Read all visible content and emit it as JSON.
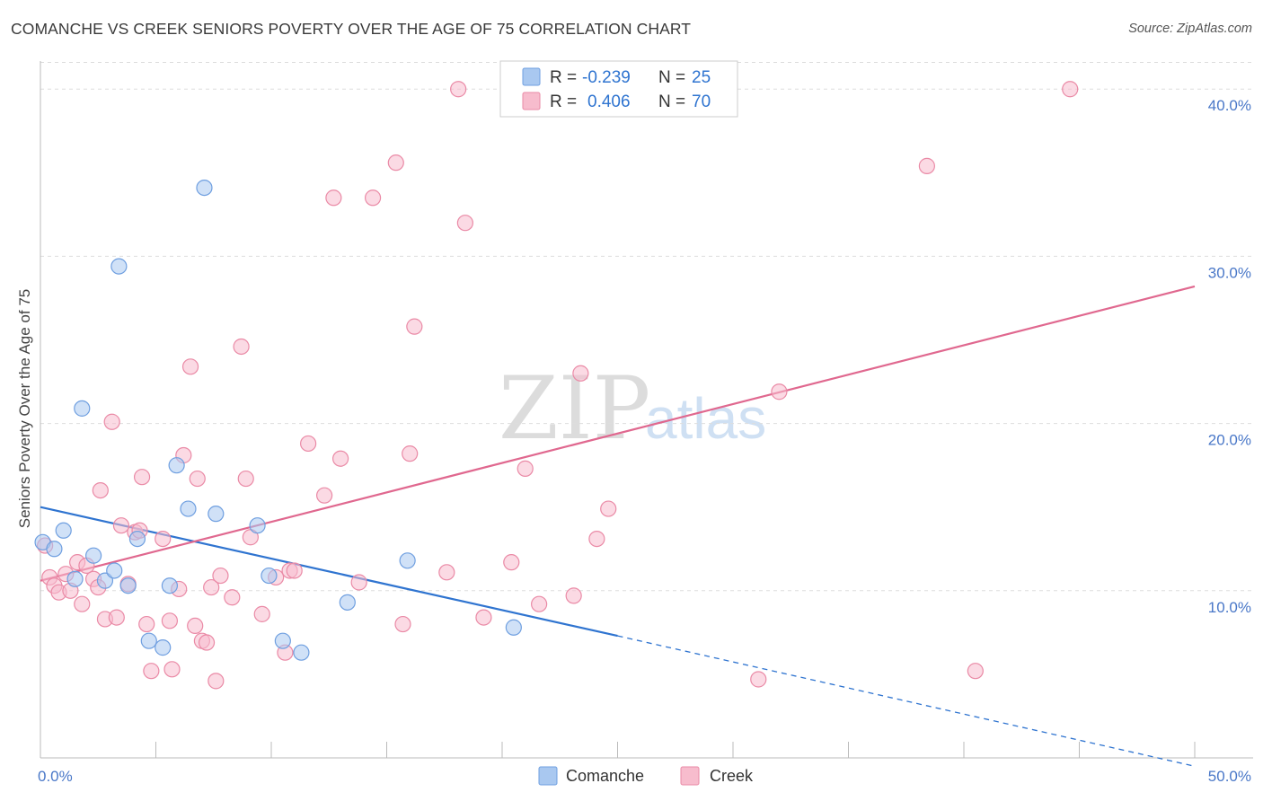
{
  "title": "COMANCHE VS CREEK SENIORS POVERTY OVER THE AGE OF 75 CORRELATION CHART",
  "source": "Source: ZipAtlas.com",
  "watermark": {
    "zip": "ZIP",
    "atlas": "atlas"
  },
  "legend": {
    "rows": [
      {
        "r_label": "R =",
        "r_value": "-0.239",
        "n_label": "N =",
        "n_value": "25",
        "color": "#a9c8f0",
        "stroke": "#6f9fe0"
      },
      {
        "r_label": "R =",
        "r_value": "0.406",
        "n_label": "N =",
        "n_value": "70",
        "color": "#f7bccd",
        "stroke": "#ea8aa6"
      }
    ]
  },
  "bottom_legend": [
    {
      "label": "Comanche",
      "color": "#a9c8f0",
      "stroke": "#6f9fe0"
    },
    {
      "label": "Creek",
      "color": "#f7bccd",
      "stroke": "#ea8aa6"
    }
  ],
  "colors": {
    "comanche_line": "#2f74d0",
    "creek_line": "#e0688f",
    "tick": "#4a78c8",
    "grid": "#dddddd"
  },
  "chart_data": {
    "type": "scatter",
    "title": "COMANCHE VS CREEK SENIORS POVERTY OVER THE AGE OF 75 CORRELATION CHART",
    "xlabel": "",
    "ylabel": "Seniors Poverty Over the Age of 75",
    "xlim": [
      0,
      50
    ],
    "ylim": [
      0,
      42
    ],
    "x_tick_labels": [
      "0.0%",
      "50.0%"
    ],
    "y_ticks": [
      10,
      20,
      30,
      40
    ],
    "y_tick_labels": [
      "10.0%",
      "20.0%",
      "30.0%",
      "40.0%"
    ],
    "grid": true,
    "legend_position": "top-center",
    "series": [
      {
        "name": "Comanche",
        "r": -0.239,
        "n": 25,
        "trend": {
          "x0": 0,
          "y0": 15.0,
          "x1": 25,
          "y1": 7.3,
          "dashed_to_x": 50,
          "dashed_to_y": -0.5
        },
        "points": [
          {
            "x": 0.1,
            "y": 12.9
          },
          {
            "x": 0.6,
            "y": 12.5
          },
          {
            "x": 1.0,
            "y": 13.6
          },
          {
            "x": 1.5,
            "y": 10.7
          },
          {
            "x": 1.8,
            "y": 20.9
          },
          {
            "x": 2.3,
            "y": 12.1
          },
          {
            "x": 2.8,
            "y": 10.6
          },
          {
            "x": 3.2,
            "y": 11.2
          },
          {
            "x": 3.4,
            "y": 29.4
          },
          {
            "x": 3.8,
            "y": 10.3
          },
          {
            "x": 4.2,
            "y": 13.1
          },
          {
            "x": 4.7,
            "y": 7.0
          },
          {
            "x": 5.3,
            "y": 6.6
          },
          {
            "x": 5.6,
            "y": 10.3
          },
          {
            "x": 5.9,
            "y": 17.5
          },
          {
            "x": 6.4,
            "y": 14.9
          },
          {
            "x": 7.1,
            "y": 34.1
          },
          {
            "x": 7.6,
            "y": 14.6
          },
          {
            "x": 9.4,
            "y": 13.9
          },
          {
            "x": 9.9,
            "y": 10.9
          },
          {
            "x": 10.5,
            "y": 7.0
          },
          {
            "x": 11.3,
            "y": 6.3
          },
          {
            "x": 13.3,
            "y": 9.3
          },
          {
            "x": 15.9,
            "y": 11.8
          },
          {
            "x": 20.5,
            "y": 7.8
          }
        ]
      },
      {
        "name": "Creek",
        "r": 0.406,
        "n": 70,
        "trend": {
          "x0": 0,
          "y0": 10.6,
          "x1": 50,
          "y1": 28.2
        },
        "points": [
          {
            "x": 0.2,
            "y": 12.7
          },
          {
            "x": 0.4,
            "y": 10.8
          },
          {
            "x": 0.6,
            "y": 10.3
          },
          {
            "x": 0.8,
            "y": 9.9
          },
          {
            "x": 1.1,
            "y": 11.0
          },
          {
            "x": 1.3,
            "y": 10.0
          },
          {
            "x": 1.6,
            "y": 11.7
          },
          {
            "x": 1.8,
            "y": 9.2
          },
          {
            "x": 2.0,
            "y": 11.5
          },
          {
            "x": 2.3,
            "y": 10.7
          },
          {
            "x": 2.5,
            "y": 10.2
          },
          {
            "x": 2.6,
            "y": 16.0
          },
          {
            "x": 2.8,
            "y": 8.3
          },
          {
            "x": 3.1,
            "y": 20.1
          },
          {
            "x": 3.3,
            "y": 8.4
          },
          {
            "x": 3.5,
            "y": 13.9
          },
          {
            "x": 3.8,
            "y": 10.4
          },
          {
            "x": 4.1,
            "y": 13.5
          },
          {
            "x": 4.3,
            "y": 13.6
          },
          {
            "x": 4.4,
            "y": 16.8
          },
          {
            "x": 4.6,
            "y": 8.0
          },
          {
            "x": 4.8,
            "y": 5.2
          },
          {
            "x": 5.3,
            "y": 13.1
          },
          {
            "x": 5.6,
            "y": 8.2
          },
          {
            "x": 5.7,
            "y": 5.3
          },
          {
            "x": 6.0,
            "y": 10.1
          },
          {
            "x": 6.2,
            "y": 18.1
          },
          {
            "x": 6.5,
            "y": 23.4
          },
          {
            "x": 6.7,
            "y": 7.9
          },
          {
            "x": 6.8,
            "y": 16.7
          },
          {
            "x": 7.0,
            "y": 7.0
          },
          {
            "x": 7.2,
            "y": 6.9
          },
          {
            "x": 7.4,
            "y": 10.2
          },
          {
            "x": 7.6,
            "y": 4.6
          },
          {
            "x": 7.8,
            "y": 10.9
          },
          {
            "x": 8.3,
            "y": 9.6
          },
          {
            "x": 8.7,
            "y": 24.6
          },
          {
            "x": 8.9,
            "y": 16.7
          },
          {
            "x": 9.1,
            "y": 13.2
          },
          {
            "x": 9.6,
            "y": 8.6
          },
          {
            "x": 10.2,
            "y": 10.8
          },
          {
            "x": 10.6,
            "y": 6.3
          },
          {
            "x": 10.8,
            "y": 11.2
          },
          {
            "x": 11.0,
            "y": 11.2
          },
          {
            "x": 11.6,
            "y": 18.8
          },
          {
            "x": 12.3,
            "y": 15.7
          },
          {
            "x": 12.7,
            "y": 33.5
          },
          {
            "x": 13.0,
            "y": 17.9
          },
          {
            "x": 13.8,
            "y": 10.5
          },
          {
            "x": 14.4,
            "y": 33.5
          },
          {
            "x": 15.4,
            "y": 35.6
          },
          {
            "x": 15.7,
            "y": 8.0
          },
          {
            "x": 16.0,
            "y": 18.2
          },
          {
            "x": 16.2,
            "y": 25.8
          },
          {
            "x": 17.6,
            "y": 11.1
          },
          {
            "x": 18.1,
            "y": 40.0
          },
          {
            "x": 18.4,
            "y": 32.0
          },
          {
            "x": 19.2,
            "y": 8.4
          },
          {
            "x": 20.4,
            "y": 11.7
          },
          {
            "x": 21.0,
            "y": 17.3
          },
          {
            "x": 21.6,
            "y": 9.2
          },
          {
            "x": 23.1,
            "y": 9.7
          },
          {
            "x": 23.4,
            "y": 23.0
          },
          {
            "x": 24.1,
            "y": 13.1
          },
          {
            "x": 24.6,
            "y": 14.9
          },
          {
            "x": 31.1,
            "y": 4.7
          },
          {
            "x": 32.0,
            "y": 21.9
          },
          {
            "x": 38.4,
            "y": 35.4
          },
          {
            "x": 40.5,
            "y": 5.2
          },
          {
            "x": 44.6,
            "y": 40.0
          }
        ]
      }
    ]
  }
}
